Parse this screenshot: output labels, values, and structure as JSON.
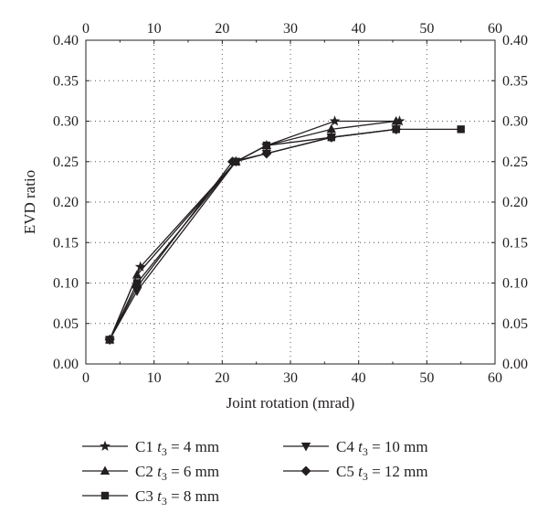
{
  "chart_data": {
    "type": "line",
    "xlabel": "Joint rotation (mrad)",
    "ylabel": "EVD ratio",
    "xlim": [
      0,
      60
    ],
    "ylim": [
      0,
      0.4
    ],
    "x_ticks": [
      "0",
      "10",
      "20",
      "30",
      "40",
      "50",
      "60"
    ],
    "y_ticks": [
      "0.00",
      "0.05",
      "0.10",
      "0.15",
      "0.20",
      "0.25",
      "0.30",
      "0.35",
      "0.40"
    ],
    "grid": "dotted",
    "secondary_axes": "top and right mirror",
    "legend_position": "bottom",
    "series": [
      {
        "name_main": "C1",
        "name_var": "t",
        "name_sub": "3",
        "name_value": "= 4 mm",
        "marker": "star",
        "x": [
          3.5,
          8,
          22,
          26.5,
          36.5,
          46
        ],
        "y": [
          0.03,
          0.12,
          0.25,
          0.27,
          0.3,
          0.3
        ]
      },
      {
        "name_main": "C2",
        "name_var": "t",
        "name_sub": "3",
        "name_value": "= 6 mm",
        "marker": "triangle-up",
        "x": [
          3.5,
          7.5,
          22,
          26.5,
          36,
          45.5
        ],
        "y": [
          0.03,
          0.11,
          0.25,
          0.27,
          0.29,
          0.3
        ]
      },
      {
        "name_main": "C3",
        "name_var": "t",
        "name_sub": "3",
        "name_value": "= 8 mm",
        "marker": "square",
        "x": [
          3.5,
          7.5,
          22,
          26.5,
          36,
          45.5,
          55
        ],
        "y": [
          0.03,
          0.1,
          0.25,
          0.27,
          0.28,
          0.29,
          0.29
        ]
      },
      {
        "name_main": "C4",
        "name_var": "t",
        "name_sub": "3",
        "name_value": "= 10 mm",
        "marker": "triangle-down",
        "x": [
          3.5,
          7.5,
          22,
          26.5,
          36,
          45.5
        ],
        "y": [
          0.03,
          0.09,
          0.25,
          0.26,
          0.28,
          0.29
        ]
      },
      {
        "name_main": "C5",
        "name_var": "t",
        "name_sub": "3",
        "name_value": "= 12 mm",
        "marker": "diamond",
        "x": [
          3.5,
          7.5,
          21.5,
          26.5,
          36,
          45.5
        ],
        "y": [
          0.03,
          0.095,
          0.25,
          0.26,
          0.28,
          0.29
        ]
      }
    ]
  }
}
